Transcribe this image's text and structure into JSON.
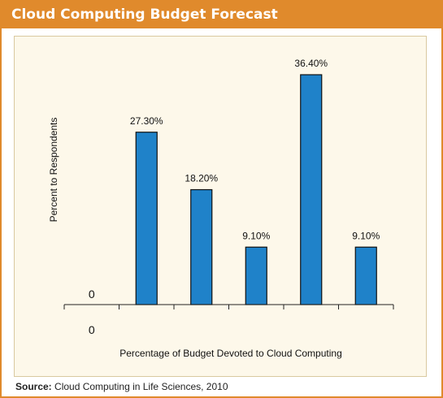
{
  "title": "Cloud Computing Budget Forecast",
  "source": {
    "label": "Source:",
    "text": "Cloud Computing in Life Sciences, 2010"
  },
  "colors": {
    "header": "#e08a2c",
    "bar": "#1f82c9",
    "panel": "#fdf8ea"
  },
  "chart_data": {
    "type": "bar",
    "title": "Cloud Computing Budget Forecast",
    "xlabel": "Percentage of Budget Devoted to Cloud Computing",
    "ylabel": "Percent to Respondents",
    "categories": [
      "0",
      "",
      "",
      "",
      "",
      ""
    ],
    "values": [
      0,
      27.3,
      18.2,
      9.1,
      36.4,
      9.1
    ],
    "data_labels": [
      "0",
      "27.30%",
      "18.20%",
      "9.10%",
      "36.40%",
      "9.10%"
    ],
    "ylim": [
      0,
      40
    ],
    "grid": false,
    "legend": "none"
  }
}
